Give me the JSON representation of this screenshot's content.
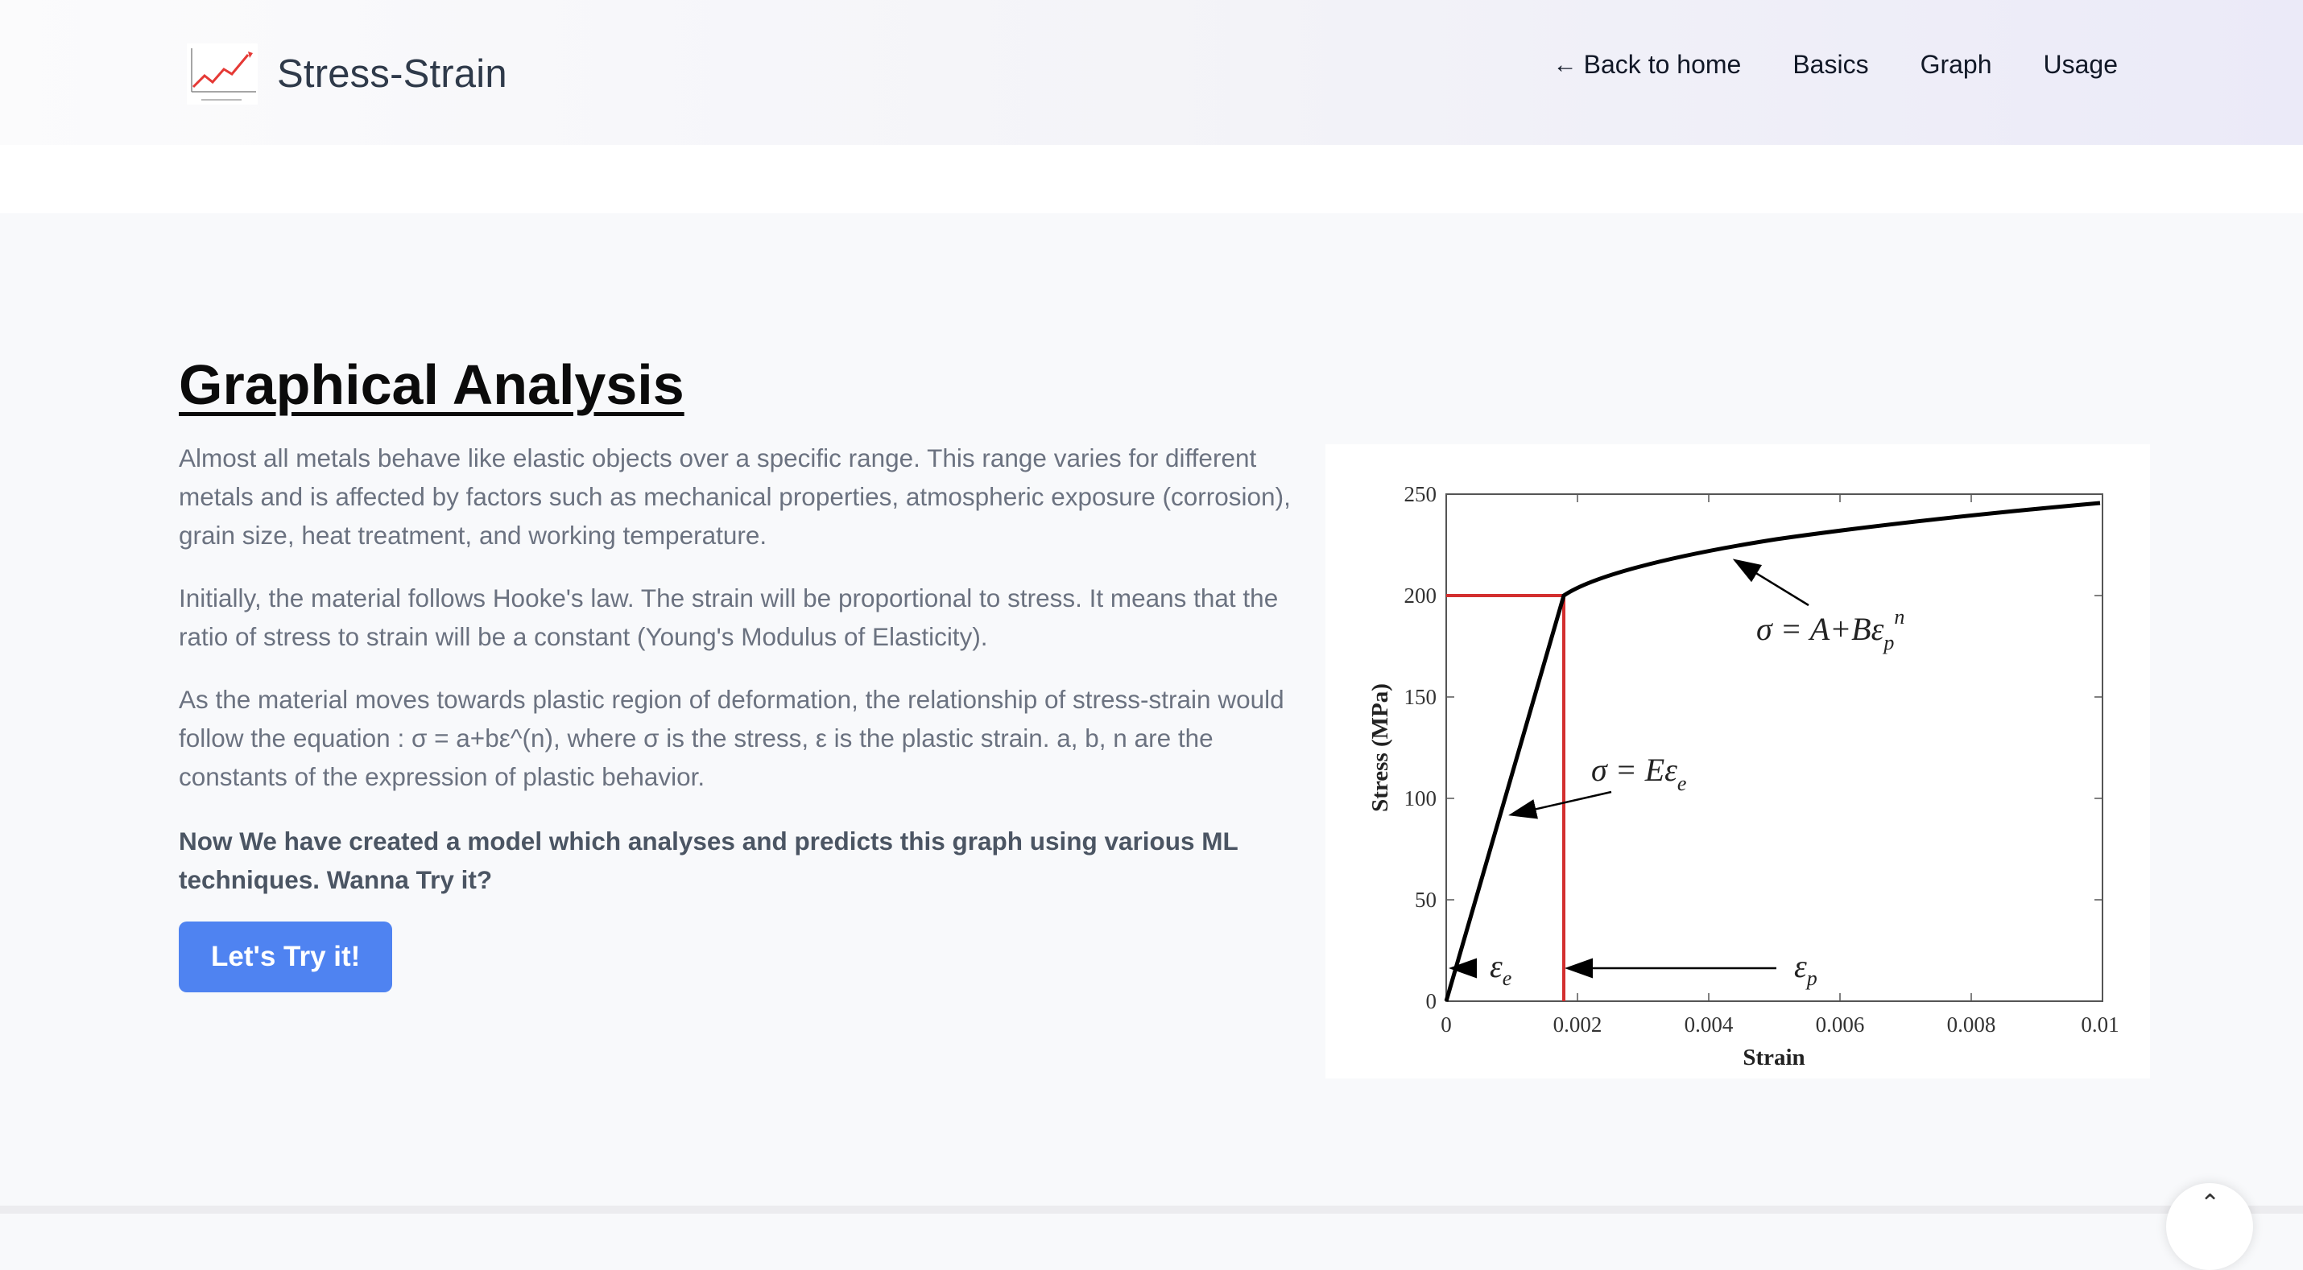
{
  "header": {
    "brand": "Stress-Strain",
    "nav": {
      "back": "Back to home",
      "basics": "Basics",
      "graph": "Graph",
      "usage": "Usage"
    }
  },
  "main": {
    "title": "Graphical Analysis",
    "paragraphs": [
      "Almost all metals behave like elastic objects over a specific range. This range varies for different metals and is affected by factors such as mechanical properties, atmospheric exposure (corrosion), grain size, heat treatment, and working temperature.",
      "Initially, the material follows Hooke's law. The strain will be proportional to stress. It means that the ratio of stress to strain will be a constant (Young's Modulus of Elasticity).",
      "As the material moves towards plastic region of deformation, the relationship of stress-strain would follow the equation : σ = a+bε^(n), where σ is the stress, ε is the plastic strain. a, b, n are the constants of the expression of plastic behavior."
    ],
    "emphasis": "Now We have created a model which analyses and predicts this graph using various ML techniques. Wanna Try it?",
    "cta_label": "Let's Try it!"
  },
  "figure": {
    "xlabel": "Strain",
    "ylabel": "Stress (MPa)",
    "xticks": [
      "0",
      "0.002",
      "0.004",
      "0.006",
      "0.008",
      "0.01"
    ],
    "yticks": [
      "0",
      "50",
      "100",
      "150",
      "200",
      "250"
    ],
    "equation_plastic_lhs": "σ = A+Bε",
    "equation_plastic_sub": "p",
    "equation_plastic_sup": "n",
    "equation_elastic_lhs": "σ = Eε",
    "equation_elastic_sub": "e",
    "label_eps": "ε",
    "label_eps_e_sub": "e",
    "label_eps_p_sub": "p"
  },
  "colors": {
    "accent": "#4f83f1",
    "curve": "#000000",
    "guides": "#d32f2f"
  }
}
